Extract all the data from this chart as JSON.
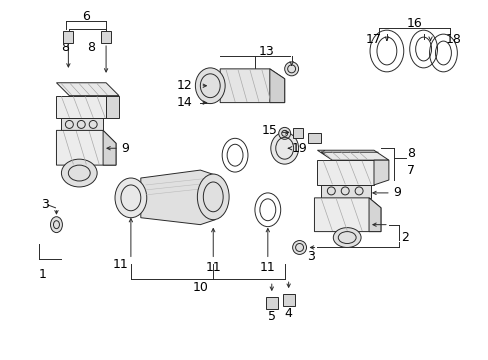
{
  "bg_color": "#ffffff",
  "line_color": "#2a2a2a",
  "label_color": "#000000",
  "label_fontsize": 9,
  "fig_width": 4.89,
  "fig_height": 3.6,
  "dpi": 100
}
